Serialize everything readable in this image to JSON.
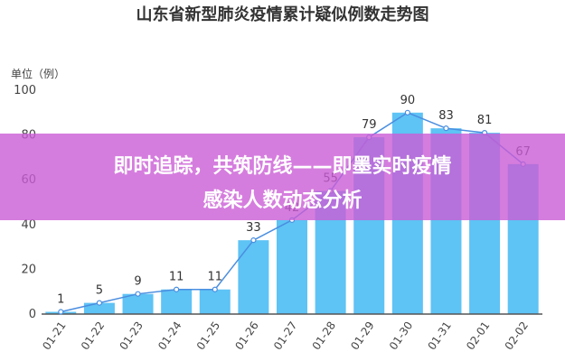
{
  "chart_data": {
    "type": "bar",
    "title": "山东省新型肺炎疫情累计疑似例数走势图",
    "ylabel": "单位（例）",
    "categories": [
      "01-21",
      "01-22",
      "01-23",
      "01-24",
      "01-25",
      "01-26",
      "01-27",
      "01-28",
      "01-29",
      "01-30",
      "01-31",
      "02-01",
      "02-02"
    ],
    "series": [
      {
        "values": [
          1,
          5,
          9,
          11,
          11,
          33,
          42,
          55,
          79,
          90,
          83,
          81,
          67
        ]
      }
    ],
    "line_overlay": true,
    "ylim": [
      0,
      100
    ],
    "yticks": [
      0,
      20,
      40,
      60,
      80,
      100
    ],
    "grid": false,
    "colors": {
      "bar": "#5ec3f5",
      "line": "#4a8ee0",
      "marker_fill": "#ffffff"
    }
  },
  "banner": {
    "line1": "即时追踪，共筑防线——即墨实时疫情",
    "line2": "感染人数动态分析",
    "color": "#cb5dd6"
  }
}
